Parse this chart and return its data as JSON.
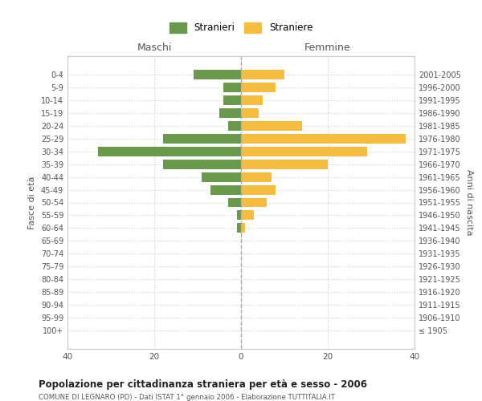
{
  "age_groups": [
    "100+",
    "95-99",
    "90-94",
    "85-89",
    "80-84",
    "75-79",
    "70-74",
    "65-69",
    "60-64",
    "55-59",
    "50-54",
    "45-49",
    "40-44",
    "35-39",
    "30-34",
    "25-29",
    "20-24",
    "15-19",
    "10-14",
    "5-9",
    "0-4"
  ],
  "birth_years": [
    "≤ 1905",
    "1906-1910",
    "1911-1915",
    "1916-1920",
    "1921-1925",
    "1926-1930",
    "1931-1935",
    "1936-1940",
    "1941-1945",
    "1946-1950",
    "1951-1955",
    "1956-1960",
    "1961-1965",
    "1966-1970",
    "1971-1975",
    "1976-1980",
    "1981-1985",
    "1986-1990",
    "1991-1995",
    "1996-2000",
    "2001-2005"
  ],
  "males": [
    0,
    0,
    0,
    0,
    0,
    0,
    0,
    0,
    1,
    1,
    3,
    7,
    9,
    18,
    33,
    18,
    3,
    5,
    4,
    4,
    11
  ],
  "females": [
    0,
    0,
    0,
    0,
    0,
    0,
    0,
    0,
    1,
    3,
    6,
    8,
    7,
    20,
    29,
    38,
    14,
    4,
    5,
    8,
    10
  ],
  "male_color": "#6a994e",
  "female_color": "#f5bc42",
  "male_label": "Stranieri",
  "female_label": "Straniere",
  "title": "Popolazione per cittadinanza straniera per età e sesso - 2006",
  "subtitle": "COMUNE DI LEGNARO (PD) - Dati ISTAT 1° gennaio 2006 - Elaborazione TUTTITALIA.IT",
  "xlabel_left": "Maschi",
  "xlabel_right": "Femmine",
  "ylabel_left": "Fasce di età",
  "ylabel_right": "Anni di nascita",
  "xlim": 40,
  "bg_color": "#ffffff",
  "grid_color": "#cccccc"
}
